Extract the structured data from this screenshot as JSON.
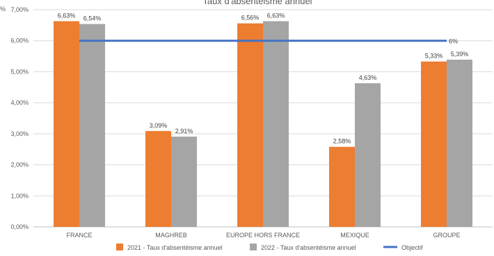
{
  "chart_data": {
    "type": "bar",
    "title": "Taux d'absentéisme annuel",
    "corner_label": "%",
    "categories": [
      "FRANCE",
      "MAGHREB",
      "EUROPE HORS FRANCE",
      "MEXIQUE",
      "GROUPE"
    ],
    "series": [
      {
        "name": "2021 - Taux d'absentéisme annuel",
        "values": [
          6.63,
          3.09,
          6.56,
          2.58,
          5.33
        ],
        "labels": [
          "6,63%",
          "3,09%",
          "6,56%",
          "2,58%",
          "5,33%"
        ],
        "color": "#ED7D31"
      },
      {
        "name": "2022 - Taux d'absentéisme annuel",
        "values": [
          6.54,
          2.91,
          6.63,
          4.63,
          5.39
        ],
        "labels": [
          "6,54%",
          "2,91%",
          "6,63%",
          "4,63%",
          "5,39%"
        ],
        "color": "#A5A5A5"
      }
    ],
    "objective": {
      "name": "Objectif",
      "value": 6,
      "label": "6%",
      "color": "#4472C4"
    },
    "ylim": [
      0,
      7
    ],
    "yticks": [
      0,
      1,
      2,
      3,
      4,
      5,
      6,
      7
    ],
    "ytick_labels": [
      "0,00%",
      "1,00%",
      "2,00%",
      "3,00%",
      "4,00%",
      "5,00%",
      "6,00%",
      "7,00%"
    ],
    "xlabel": "",
    "ylabel": "",
    "grid": true,
    "legend_position": "bottom"
  }
}
